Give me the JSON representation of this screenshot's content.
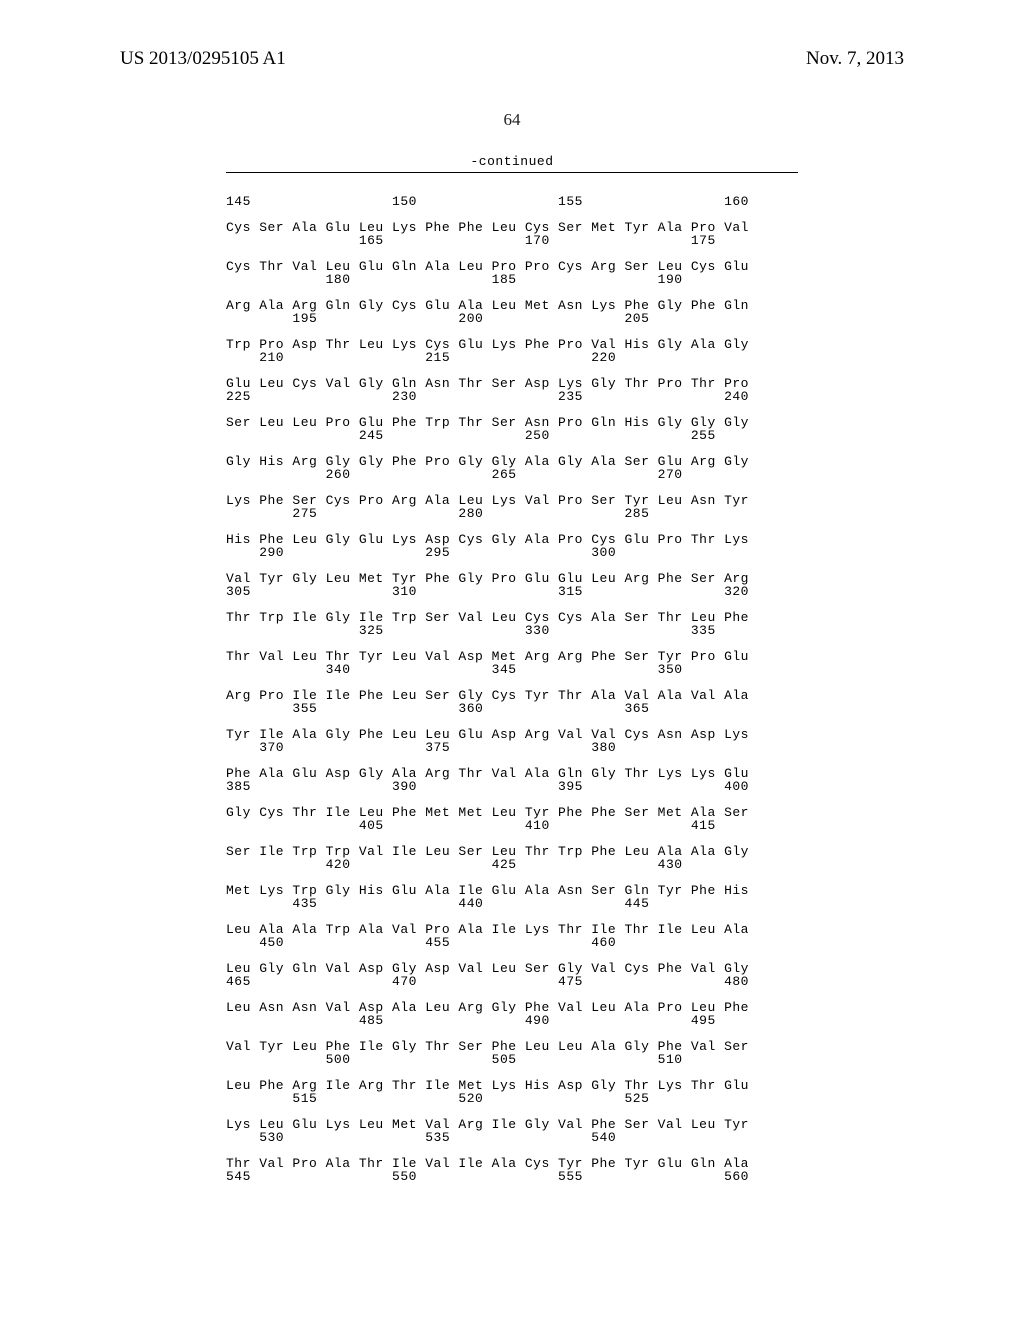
{
  "header": {
    "left": "US 2013/0295105 A1",
    "right": "Nov. 7, 2013"
  },
  "page_number": "64",
  "continued_label": "-continued",
  "sequence_block": "145                 150                 155                 160\n\nCys Ser Ala Glu Leu Lys Phe Phe Leu Cys Ser Met Tyr Ala Pro Val\n                165                 170                 175\n\nCys Thr Val Leu Glu Gln Ala Leu Pro Pro Cys Arg Ser Leu Cys Glu\n            180                 185                 190\n\nArg Ala Arg Gln Gly Cys Glu Ala Leu Met Asn Lys Phe Gly Phe Gln\n        195                 200                 205\n\nTrp Pro Asp Thr Leu Lys Cys Glu Lys Phe Pro Val His Gly Ala Gly\n    210                 215                 220\n\nGlu Leu Cys Val Gly Gln Asn Thr Ser Asp Lys Gly Thr Pro Thr Pro\n225                 230                 235                 240\n\nSer Leu Leu Pro Glu Phe Trp Thr Ser Asn Pro Gln His Gly Gly Gly\n                245                 250                 255\n\nGly His Arg Gly Gly Phe Pro Gly Gly Ala Gly Ala Ser Glu Arg Gly\n            260                 265                 270\n\nLys Phe Ser Cys Pro Arg Ala Leu Lys Val Pro Ser Tyr Leu Asn Tyr\n        275                 280                 285\n\nHis Phe Leu Gly Glu Lys Asp Cys Gly Ala Pro Cys Glu Pro Thr Lys\n    290                 295                 300\n\nVal Tyr Gly Leu Met Tyr Phe Gly Pro Glu Glu Leu Arg Phe Ser Arg\n305                 310                 315                 320\n\nThr Trp Ile Gly Ile Trp Ser Val Leu Cys Cys Ala Ser Thr Leu Phe\n                325                 330                 335\n\nThr Val Leu Thr Tyr Leu Val Asp Met Arg Arg Phe Ser Tyr Pro Glu\n            340                 345                 350\n\nArg Pro Ile Ile Phe Leu Ser Gly Cys Tyr Thr Ala Val Ala Val Ala\n        355                 360                 365\n\nTyr Ile Ala Gly Phe Leu Leu Glu Asp Arg Val Val Cys Asn Asp Lys\n    370                 375                 380\n\nPhe Ala Glu Asp Gly Ala Arg Thr Val Ala Gln Gly Thr Lys Lys Glu\n385                 390                 395                 400\n\nGly Cys Thr Ile Leu Phe Met Met Leu Tyr Phe Phe Ser Met Ala Ser\n                405                 410                 415\n\nSer Ile Trp Trp Val Ile Leu Ser Leu Thr Trp Phe Leu Ala Ala Gly\n            420                 425                 430\n\nMet Lys Trp Gly His Glu Ala Ile Glu Ala Asn Ser Gln Tyr Phe His\n        435                 440                 445\n\nLeu Ala Ala Trp Ala Val Pro Ala Ile Lys Thr Ile Thr Ile Leu Ala\n    450                 455                 460\n\nLeu Gly Gln Val Asp Gly Asp Val Leu Ser Gly Val Cys Phe Val Gly\n465                 470                 475                 480\n\nLeu Asn Asn Val Asp Ala Leu Arg Gly Phe Val Leu Ala Pro Leu Phe\n                485                 490                 495\n\nVal Tyr Leu Phe Ile Gly Thr Ser Phe Leu Leu Ala Gly Phe Val Ser\n            500                 505                 510\n\nLeu Phe Arg Ile Arg Thr Ile Met Lys His Asp Gly Thr Lys Thr Glu\n        515                 520                 525\n\nLys Leu Glu Lys Leu Met Val Arg Ile Gly Val Phe Ser Val Leu Tyr\n    530                 535                 540\n\nThr Val Pro Ala Thr Ile Val Ile Ala Cys Tyr Phe Tyr Glu Gln Ala\n545                 550                 555                 560\n"
}
